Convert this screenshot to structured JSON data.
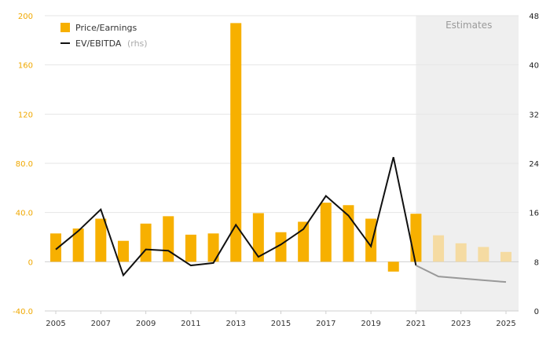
{
  "chart_data": {
    "type": "bar",
    "title": "",
    "xlabel": "",
    "ylabel": "",
    "legend_placement": "top-left",
    "grid": true,
    "estimates_label": "Estimates",
    "estimates_start": 2021,
    "x": [
      2005,
      2006,
      2007,
      2008,
      2009,
      2010,
      2011,
      2012,
      2013,
      2014,
      2015,
      2016,
      2017,
      2018,
      2019,
      2020,
      2021,
      2022,
      2023,
      2024,
      2025
    ],
    "x_tick_labels": [
      "2005",
      "2007",
      "2009",
      "2011",
      "2013",
      "2015",
      "2017",
      "2019",
      "2021",
      "2023",
      "2025"
    ],
    "y_left": {
      "ylim": [
        -40,
        200
      ],
      "ticks": [
        "-40.0",
        "0",
        "40.0",
        "80.0",
        "120",
        "160",
        "200"
      ],
      "tick_values": [
        -40,
        0,
        40,
        80,
        120,
        160,
        200
      ]
    },
    "y_right": {
      "ylim": [
        0,
        48
      ],
      "ticks": [
        "0",
        "8",
        "16",
        "24",
        "32",
        "40",
        "48"
      ],
      "tick_values": [
        0,
        8,
        16,
        24,
        32,
        40,
        48
      ]
    },
    "series": [
      {
        "name": "Price/Earnings",
        "kind": "bar",
        "axis": "left",
        "color": "#f7b000",
        "estimate_color": "#f5dba2",
        "values": [
          23,
          27,
          35,
          17,
          31,
          37,
          22,
          23,
          194,
          39.5,
          24,
          32.5,
          48,
          46,
          35,
          -8,
          39,
          21.5,
          15,
          12,
          8
        ]
      },
      {
        "name": "EV/EBITDA",
        "name_suffix": "(rhs)",
        "kind": "line",
        "axis": "right",
        "color": "#111111",
        "estimate_color": "#999999",
        "values": [
          10,
          13,
          16.5,
          5.8,
          10,
          9.8,
          7.4,
          7.8,
          14,
          8.8,
          10.8,
          13.3,
          18.7,
          15.5,
          10.5,
          25,
          7.4,
          5.6,
          5.3,
          5,
          4.7
        ]
      }
    ]
  }
}
